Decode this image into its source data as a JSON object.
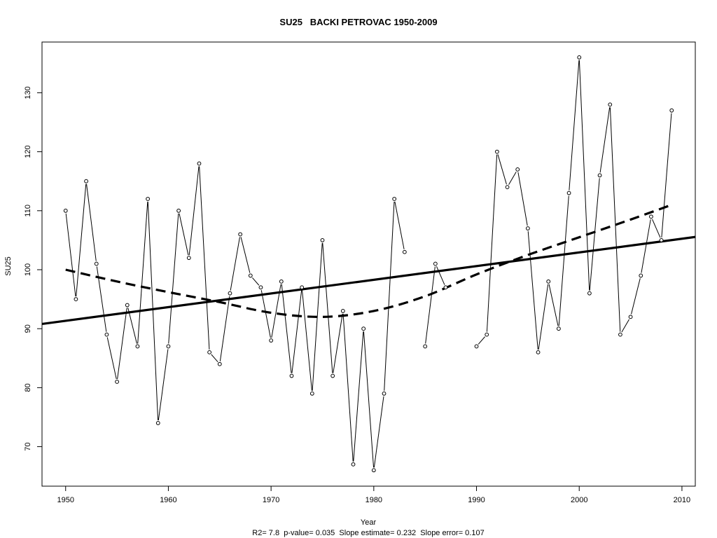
{
  "chart_data": {
    "type": "line",
    "title": "SU25   BACKI PETROVAC 1950-2009",
    "xlabel": "Year",
    "ylabel": "SU25",
    "footnote": "R2= 7.8  p-value= 0.035  Slope estimate= 0.232  Slope error= 0.107",
    "xlim": [
      1947.7,
      2011.3
    ],
    "ylim": [
      63.3,
      138.6
    ],
    "x_ticks": [
      1950,
      1960,
      1970,
      1980,
      1990,
      2000,
      2010
    ],
    "y_ticks": [
      70,
      80,
      90,
      100,
      110,
      120,
      130
    ],
    "grid": false,
    "series": [
      {
        "style": "points-and-lines",
        "x": [
          1950,
          1951,
          1952,
          1953,
          1954,
          1955,
          1956,
          1957,
          1958,
          1959,
          1960,
          1961,
          1962,
          1963,
          1964,
          1965,
          1966,
          1967,
          1968,
          1969,
          1970,
          1971,
          1972,
          1973,
          1974,
          1975,
          1976,
          1977,
          1978,
          1979,
          1980,
          1981,
          1982,
          1983,
          1984,
          1985,
          1986,
          1987,
          1988,
          1989,
          1990,
          1991,
          1992,
          1993,
          1994,
          1995,
          1996,
          1997,
          1998,
          1999,
          2000,
          2001,
          2002,
          2003,
          2004,
          2005,
          2006,
          2007,
          2008,
          2009
        ],
        "y": [
          110,
          95,
          115,
          101,
          89,
          81,
          94,
          87,
          112,
          74,
          87,
          110,
          102,
          118,
          86,
          84,
          96,
          106,
          99,
          97,
          88,
          98,
          82,
          97,
          79,
          105,
          82,
          93,
          67,
          90,
          66,
          79,
          112,
          103,
          null,
          87,
          101,
          97,
          null,
          null,
          87,
          89,
          120,
          114,
          117,
          107,
          86,
          98,
          90,
          113,
          136,
          96,
          116,
          128,
          89,
          92,
          99,
          109,
          105,
          127
        ]
      },
      {
        "style": "solid-bold",
        "x": [
          1947.7,
          2011.3
        ],
        "y": [
          90.8,
          105.55
        ]
      },
      {
        "style": "dashed-bold",
        "x": [
          1950,
          1955,
          1960,
          1965,
          1970,
          1975,
          1980,
          1985,
          1990,
          1995,
          2000,
          2005,
          2009
        ],
        "y": [
          100,
          98,
          96.2,
          94.5,
          92.7,
          92,
          93,
          95.5,
          99.2,
          102.5,
          105.5,
          108.5,
          111
        ]
      }
    ]
  }
}
